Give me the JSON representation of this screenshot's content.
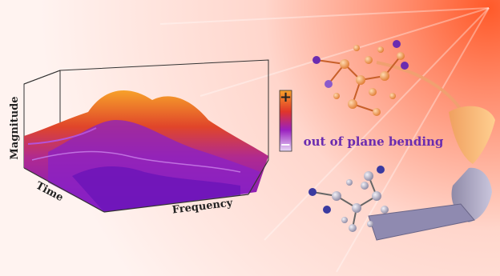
{
  "axes": {
    "z_label": "Magnitude",
    "y_label": "Time",
    "x_label": "Frequency"
  },
  "colorbar": {
    "max_label": "+",
    "min_label": "−"
  },
  "caption": "out of plane bending"
}
